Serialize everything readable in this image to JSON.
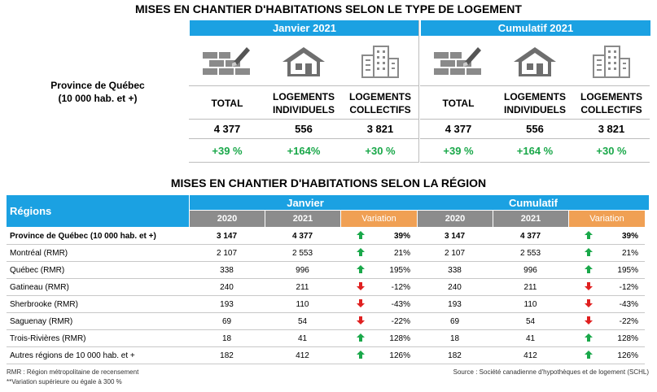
{
  "title": "MISES EN CHANTIER D'HABITATIONS SELON LE TYPE DE LOGEMENT",
  "top_table": {
    "row_label": [
      "Province de Québec",
      "(10 000 hab. et +)"
    ],
    "groups": [
      {
        "name": "Janvier 2021",
        "columns": [
          [
            "TOTAL"
          ],
          [
            "LOGEMENTS",
            "INDIVIDUELS"
          ],
          [
            "LOGEMENTS",
            "COLLECTIFS"
          ]
        ],
        "values": [
          "4 377",
          "556",
          "3 821"
        ],
        "changes": [
          "+39 %",
          "+164%",
          "+30 %"
        ]
      },
      {
        "name": "Cumulatif 2021",
        "columns": [
          [
            "TOTAL"
          ],
          [
            "LOGEMENTS",
            "INDIVIDUELS"
          ],
          [
            "LOGEMENTS",
            "COLLECTIFS"
          ]
        ],
        "values": [
          "4 377",
          "556",
          "3 821"
        ],
        "changes": [
          "+39 %",
          "+164 %",
          "+30 %"
        ]
      }
    ]
  },
  "region_title": "MISES EN CHANTIER D'HABITATIONS SELON LA RÉGION",
  "region_table": {
    "header": "Régions",
    "groups": [
      {
        "name": "Janvier",
        "subheaders": [
          "2020",
          "2021",
          "Variation"
        ]
      },
      {
        "name": "Cumulatif",
        "subheaders": [
          "2020",
          "2021",
          "Variation"
        ]
      }
    ],
    "rows": [
      [
        "Province de Québec (10 000 hab. et +)",
        "3 147",
        "4 377",
        "39%",
        "3 147",
        "4 377",
        "39%"
      ],
      [
        "Montréal (RMR)",
        "2 107",
        "2 553",
        "21%",
        "2 107",
        "2 553",
        "21%"
      ],
      [
        "Québec (RMR)",
        "338",
        "996",
        "195%",
        "338",
        "996",
        "195%"
      ],
      [
        "Gatineau (RMR)",
        "240",
        "211",
        "-12%",
        "240",
        "211",
        "-12%"
      ],
      [
        "Sherbrooke (RMR)",
        "193",
        "110",
        "-43%",
        "193",
        "110",
        "-43%"
      ],
      [
        "Saguenay (RMR)",
        "69",
        "54",
        "-22%",
        "69",
        "54",
        "-22%"
      ],
      [
        "Trois-Rivières (RMR)",
        "18",
        "41",
        "128%",
        "18",
        "41",
        "128%"
      ],
      [
        "Autres régions de 10 000  hab. et +",
        "182",
        "412",
        "126%",
        "182",
        "412",
        "126%"
      ]
    ]
  },
  "notes": [
    "RMR : Région métropolitaine de recensement",
    "**Variation supérieure ou égale à 300 %"
  ],
  "source": "Source : Société canadienne d'hypothèques et de logement (SCHL)"
}
